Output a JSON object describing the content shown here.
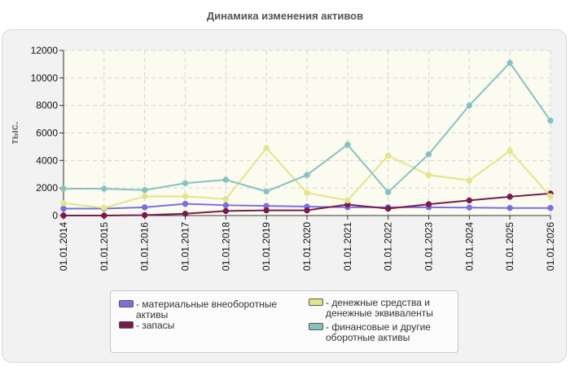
{
  "title": "Динамика изменения активов",
  "chart_data": {
    "type": "line",
    "title": "Динамика изменения активов",
    "ylabel": "тыс.",
    "xlabel": "",
    "ylim": [
      0,
      12000
    ],
    "yticks": [
      0,
      2000,
      4000,
      6000,
      8000,
      10000,
      12000
    ],
    "grid": true,
    "legend_position": "bottom",
    "categories": [
      "01.01.2014",
      "01.01.2015",
      "01.01.2016",
      "01.01.2017",
      "01.01.2018",
      "01.01.2019",
      "01.01.2020",
      "01.01.2021",
      "01.01.2022",
      "01.01.2023",
      "01.01.2024",
      "01.01.2025",
      "01.01.2026"
    ],
    "series": [
      {
        "name": "- материальные внеоборотные активы",
        "color": "#7b6fe0",
        "values": [
          500,
          500,
          600,
          850,
          750,
          700,
          650,
          600,
          600,
          600,
          580,
          550,
          550
        ]
      },
      {
        "name": "- запасы",
        "color": "#7a1b4d",
        "values": [
          0,
          0,
          30,
          130,
          330,
          380,
          380,
          800,
          500,
          820,
          1100,
          1370,
          1600
        ]
      },
      {
        "name": "- денежные средства и денежные эквиваленты",
        "color": "#e4e48a",
        "values": [
          900,
          550,
          1400,
          1400,
          1200,
          4900,
          1650,
          1100,
          4350,
          2950,
          2550,
          4700,
          1400
        ]
      },
      {
        "name": "- финансовые и другие оборотные активы",
        "color": "#86c2c2",
        "values": [
          1950,
          1950,
          1850,
          2350,
          2600,
          1750,
          2950,
          5150,
          1700,
          4450,
          8000,
          11100,
          6900
        ]
      }
    ]
  }
}
